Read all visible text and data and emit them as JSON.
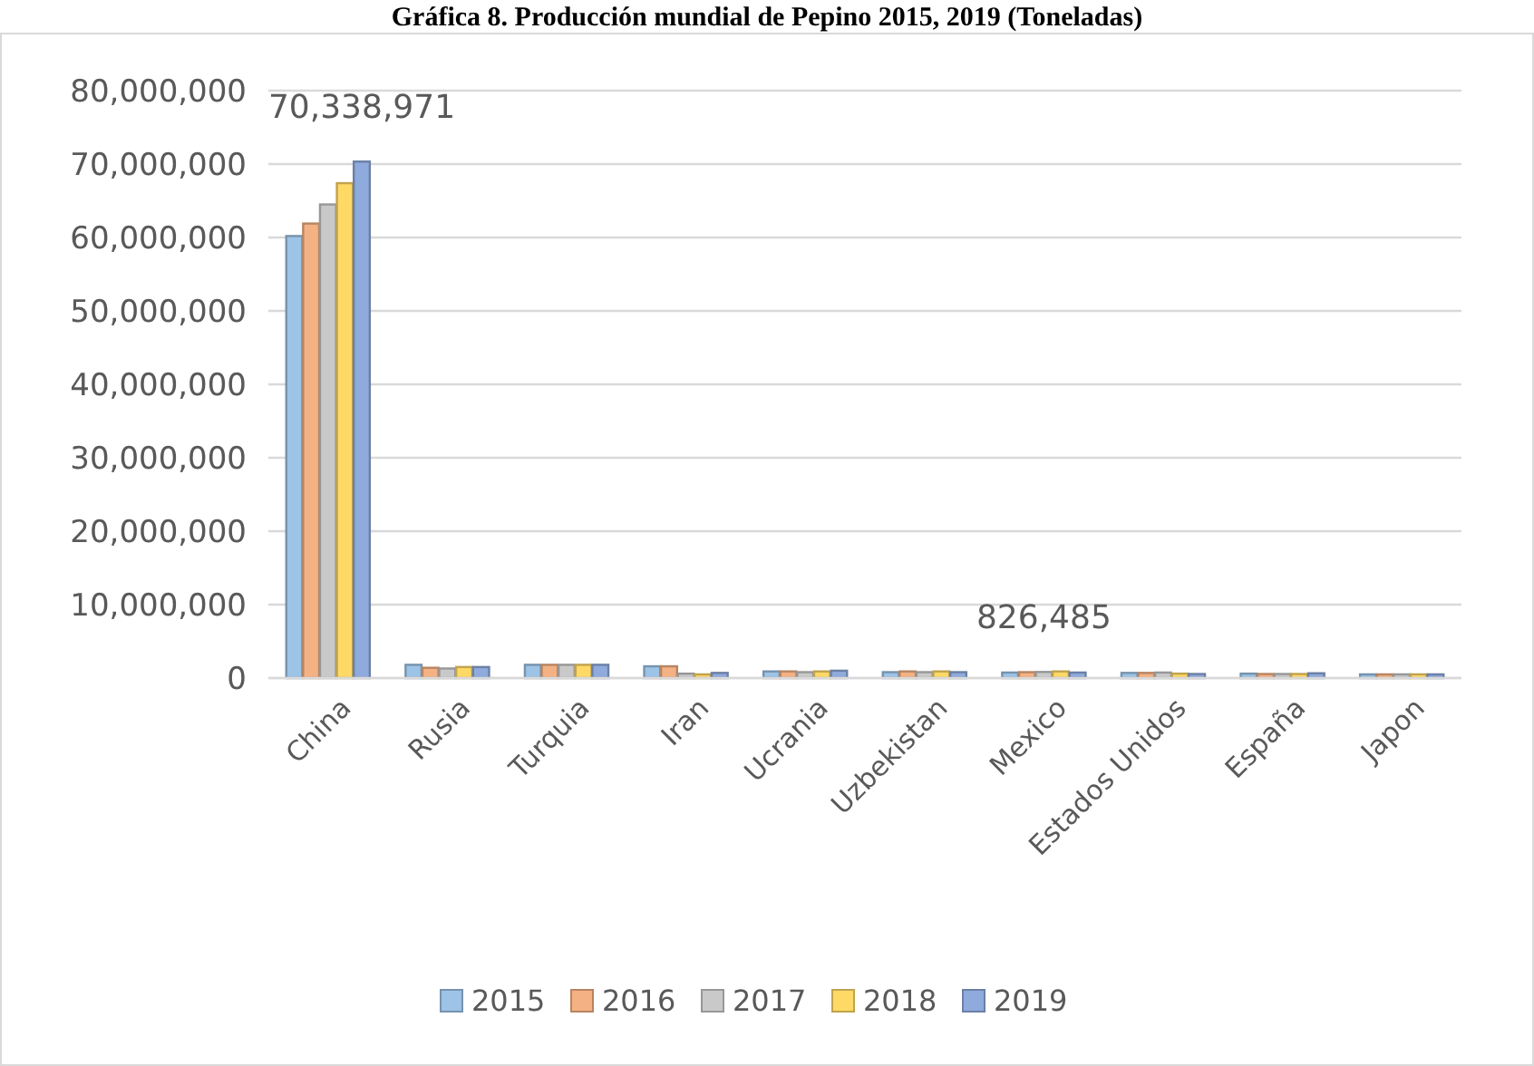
{
  "chart_data": {
    "type": "bar",
    "title": "Gráfica 8. Producción mundial de Pepino 2015, 2019 (Toneladas)",
    "categories": [
      "China",
      "Rusia",
      "Turquia",
      "Iran",
      "Ucrania",
      "Uzbekistan",
      "Mexico",
      "Estados Unidos",
      "España",
      "Japon"
    ],
    "series": [
      {
        "name": "2015",
        "color": "#9dc3e6",
        "values": [
          60200000,
          1800000,
          1800000,
          1600000,
          900000,
          800000,
          750000,
          700000,
          600000,
          500000
        ]
      },
      {
        "name": "2016",
        "color": "#f4b183",
        "values": [
          61900000,
          1400000,
          1800000,
          1600000,
          900000,
          900000,
          800000,
          700000,
          550000,
          500000
        ]
      },
      {
        "name": "2017",
        "color": "#c9c9c9",
        "values": [
          64500000,
          1300000,
          1800000,
          600000,
          800000,
          800000,
          826485,
          750000,
          550000,
          500000
        ],
        "value_labels": [
          null,
          null,
          null,
          null,
          null,
          null,
          "826,485",
          null,
          null,
          null
        ]
      },
      {
        "name": "2018",
        "color": "#ffd966",
        "values": [
          67400000,
          1500000,
          1800000,
          500000,
          900000,
          900000,
          900000,
          600000,
          550000,
          500000
        ]
      },
      {
        "name": "2019",
        "color": "#8faadc",
        "values": [
          70338971,
          1500000,
          1800000,
          700000,
          1000000,
          800000,
          750000,
          550000,
          650000,
          500000
        ],
        "value_labels": [
          "70,338,971",
          null,
          null,
          null,
          null,
          null,
          null,
          null,
          null,
          null
        ]
      }
    ],
    "ylim": [
      0,
      80000000
    ],
    "yticks": [
      {
        "value": 0,
        "label": "0"
      },
      {
        "value": 10000000,
        "label": "10,000,000"
      },
      {
        "value": 20000000,
        "label": "20,000,000"
      },
      {
        "value": 30000000,
        "label": "30,000,000"
      },
      {
        "value": 40000000,
        "label": "40,000,000"
      },
      {
        "value": 50000000,
        "label": "50,000,000"
      },
      {
        "value": 60000000,
        "label": "60,000,000"
      },
      {
        "value": 70000000,
        "label": "70,000,000"
      },
      {
        "value": 80000000,
        "label": "80,000,000"
      }
    ],
    "grid": "y",
    "legend": "bottom"
  }
}
